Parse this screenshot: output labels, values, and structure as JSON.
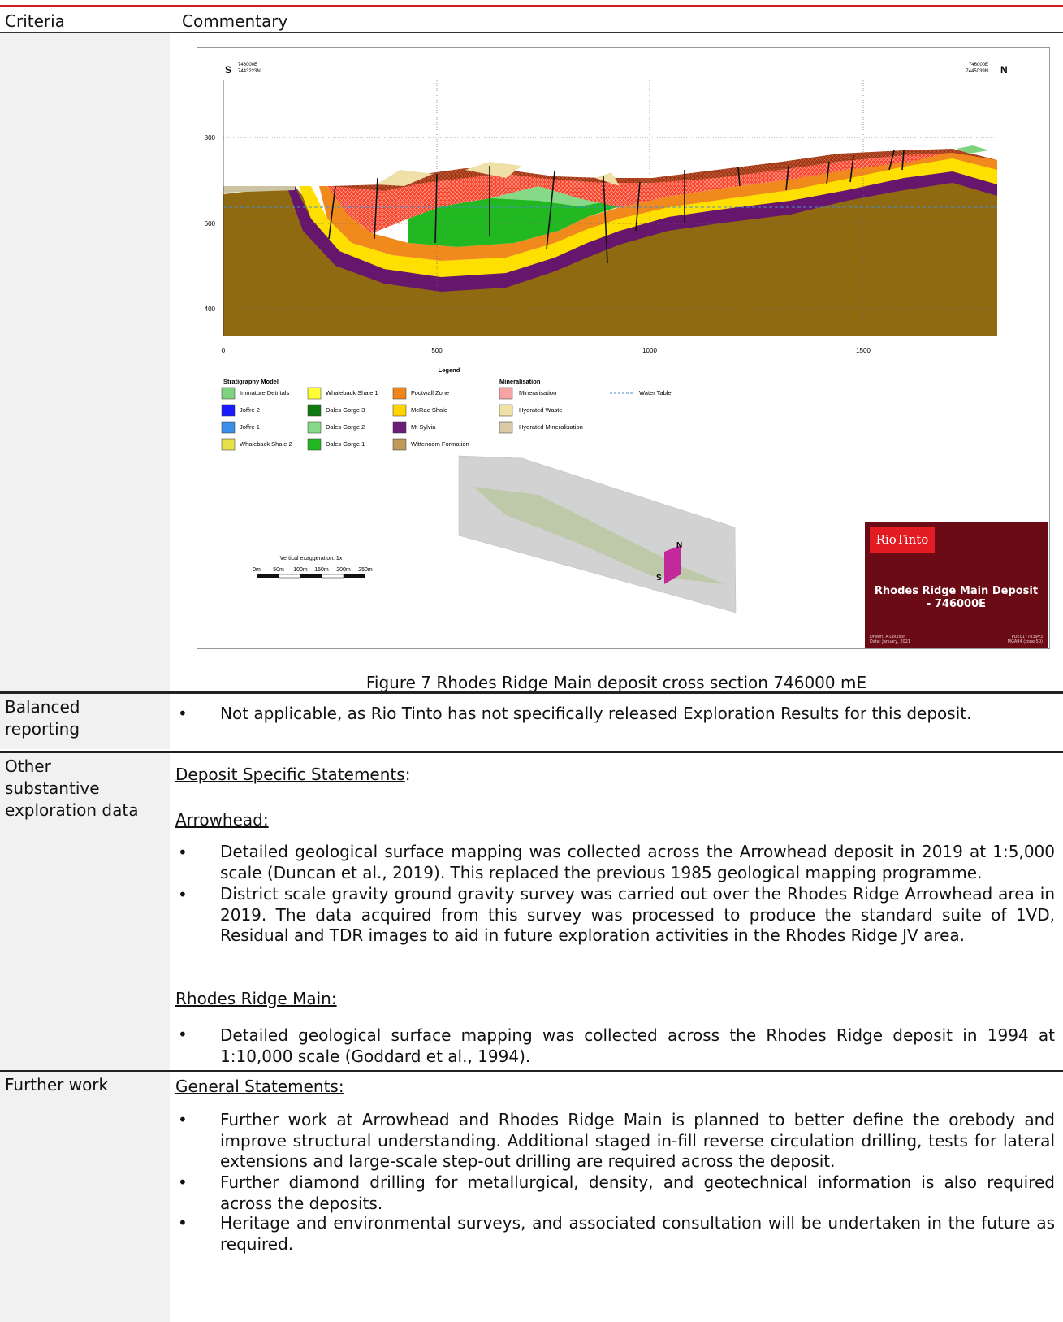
{
  "header": {
    "criteria": "Criteria",
    "commentary": "Commentary"
  },
  "figure": {
    "caption": "Figure 7 Rhodes Ridge Main deposit cross section 746000 mE",
    "south_label": "S",
    "north_label": "N",
    "south_coord_e": "746000E",
    "south_coord_n": "7443223N",
    "north_coord_e": "746000E",
    "north_coord_n": "7445039N",
    "y_ticks": [
      "800",
      "600",
      "400"
    ],
    "x_ticks": [
      "0",
      "500",
      "1000",
      "1500"
    ],
    "legend_title": "Legend",
    "strat_title": "Stratigraphy Model",
    "min_title": "Mineralisation",
    "legend_col1": [
      {
        "label": "Immature Detritals",
        "color": "#7fd37f"
      },
      {
        "label": "Joffre 2",
        "color": "#1a1aff"
      },
      {
        "label": "Joffre 1",
        "color": "#3b8fe8"
      },
      {
        "label": "Whaleback Shale 2",
        "color": "#e6e04a"
      }
    ],
    "legend_col2": [
      {
        "label": "Whaleback Shale 1",
        "color": "#ffff33"
      },
      {
        "label": "Dales Gorge 3",
        "color": "#107a10"
      },
      {
        "label": "Dales Gorge 2",
        "color": "#86d986"
      },
      {
        "label": "Dales Gorge 1",
        "color": "#22b822"
      }
    ],
    "legend_col3": [
      {
        "label": "Footwall Zone",
        "color": "#f08519"
      },
      {
        "label": "McRae Shale",
        "color": "#ffd400"
      },
      {
        "label": "Mt Sylvia",
        "color": "#6b1d77"
      },
      {
        "label": "Wittenoom Formation",
        "color": "#bf9a5a"
      }
    ],
    "legend_col4": [
      {
        "label": "Mineralisation",
        "color": "#f6a3a3"
      },
      {
        "label": "Hydrated Waste",
        "color": "#efe0a8"
      },
      {
        "label": "Hydrated Mineralisation",
        "color": "#d9c9a8"
      }
    ],
    "water_table": "Water Table",
    "vert_exag": "Vertical exaggeration: 1x",
    "scale_labels": [
      "0m",
      "50m",
      "100m",
      "150m",
      "200m",
      "250m"
    ],
    "brand_logo": "RioTinto",
    "brand_title_1": "Rhodes Ridge Main Deposit",
    "brand_title_2": "- 746000E",
    "brand_drawn": "Drawn: A.Coulson",
    "brand_date": "Date: January, 2021",
    "brand_ref": "PDE0177839v3",
    "brand_grid": "MGA94 (zone 50)",
    "inset_s": "S",
    "inset_n": "N"
  },
  "rows": {
    "balanced": {
      "criteria_1": "Balanced",
      "criteria_2": "reporting",
      "bullet": "Not applicable, as Rio Tinto has not specifically released Exploration Results for this deposit."
    },
    "other": {
      "criteria_1": "Other",
      "criteria_2": "substantive",
      "criteria_3": "exploration data",
      "heading": "Deposit Specific Statements",
      "heading_suffix": ":",
      "sub1": "Arrowhead:",
      "b1": "Detailed geological surface mapping was collected across the Arrowhead deposit in 2019 at 1:5,000 scale (Duncan et al., 2019). This replaced the previous 1985 geological mapping programme.",
      "b2": "District scale gravity ground gravity survey was carried out over the Rhodes Ridge Arrowhead area in 2019. The data acquired from this survey was processed to produce the standard suite of 1VD, Residual and TDR images to aid in future exploration activities in the Rhodes Ridge JV area.",
      "sub2": "Rhodes Ridge Main:",
      "b3": "Detailed geological surface mapping was collected across the Rhodes Ridge deposit in 1994 at 1:10,000 scale (Goddard et al., 1994)."
    },
    "further": {
      "criteria": "Further work",
      "heading": "General Statements:",
      "b1": "Further work at Arrowhead and Rhodes Ridge Main is planned to better define the orebody and improve structural understanding. Additional staged in-fill reverse circulation drilling, tests for lateral extensions and large-scale step-out drilling are required across the deposit.",
      "b2": "Further diamond drilling for metallurgical, density, and geotechnical information is also required across the deposits.",
      "b3": "Heritage and environmental surveys, and associated consultation will be undertaken in the future as required."
    }
  }
}
